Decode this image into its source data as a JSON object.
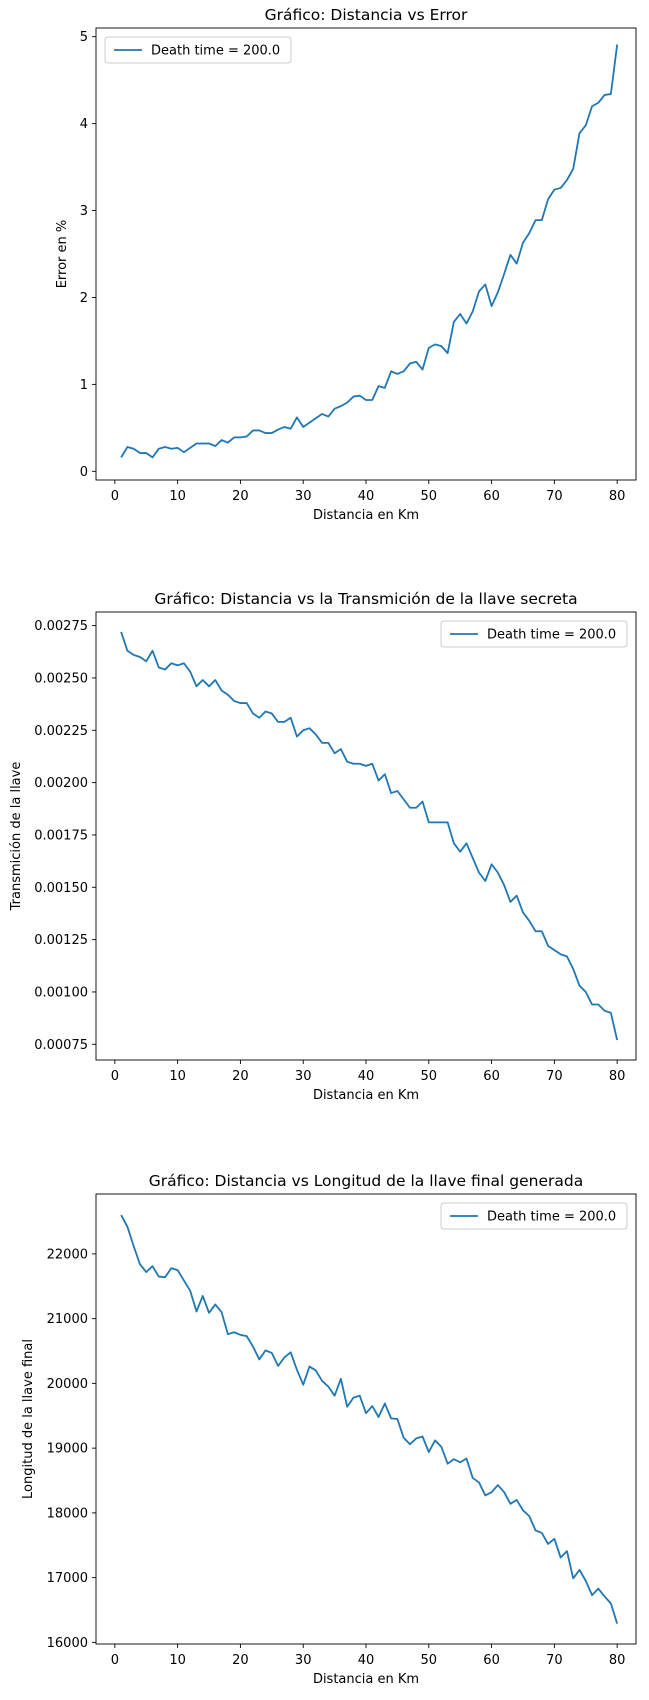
{
  "chart_data": [
    {
      "type": "line",
      "title": "Gráfico: Distancia vs Error",
      "xlabel": "Distancia en Km",
      "ylabel": "Error en %",
      "xlim": [
        -3,
        83
      ],
      "ylim": [
        -0.1,
        5.1
      ],
      "xticks": [
        0,
        10,
        20,
        30,
        40,
        50,
        60,
        70,
        80
      ],
      "yticks": [
        0,
        1,
        2,
        3,
        4,
        5
      ],
      "legend_position": "upper-left",
      "grid": false,
      "series": [
        {
          "name": "Death time = 200.0",
          "color": "#1f77b4",
          "x": [
            1,
            2,
            3,
            4,
            5,
            6,
            7,
            8,
            9,
            10,
            11,
            12,
            13,
            14,
            15,
            16,
            17,
            18,
            19,
            20,
            21,
            22,
            23,
            24,
            25,
            26,
            27,
            28,
            29,
            30,
            31,
            32,
            33,
            34,
            35,
            36,
            37,
            38,
            39,
            40,
            41,
            42,
            43,
            44,
            45,
            46,
            47,
            48,
            49,
            50,
            51,
            52,
            53,
            54,
            55,
            56,
            57,
            58,
            59,
            60,
            61,
            62,
            63,
            64,
            65,
            66,
            67,
            68,
            69,
            70,
            71,
            72,
            73,
            74,
            75,
            76,
            77,
            78,
            79,
            80
          ],
          "y": [
            0.16,
            0.28,
            0.26,
            0.21,
            0.21,
            0.16,
            0.26,
            0.28,
            0.26,
            0.27,
            0.22,
            0.27,
            0.32,
            0.32,
            0.32,
            0.29,
            0.36,
            0.33,
            0.39,
            0.39,
            0.4,
            0.47,
            0.47,
            0.44,
            0.44,
            0.48,
            0.51,
            0.49,
            0.62,
            0.51,
            0.56,
            0.61,
            0.66,
            0.63,
            0.72,
            0.75,
            0.79,
            0.86,
            0.87,
            0.82,
            0.82,
            0.98,
            0.96,
            1.15,
            1.12,
            1.15,
            1.24,
            1.26,
            1.17,
            1.42,
            1.46,
            1.44,
            1.36,
            1.72,
            1.81,
            1.7,
            1.84,
            2.07,
            2.15,
            1.9,
            2.06,
            2.27,
            2.49,
            2.39,
            2.63,
            2.74,
            2.89,
            2.89,
            3.13,
            3.24,
            3.26,
            3.35,
            3.48,
            3.89,
            3.98,
            4.2,
            4.24,
            4.33,
            4.34,
            4.91
          ]
        }
      ]
    },
    {
      "type": "line",
      "title": "Gráfico: Distancia vs la Transmición de la llave secreta",
      "xlabel": "Distancia en Km",
      "ylabel": "Transmición de la llave",
      "xlim": [
        -3,
        83
      ],
      "ylim": [
        0.000675,
        0.002815
      ],
      "xticks": [
        0,
        10,
        20,
        30,
        40,
        50,
        60,
        70,
        80
      ],
      "yticks": [
        0.00075,
        0.001,
        0.00125,
        0.0015,
        0.00175,
        0.002,
        0.00225,
        0.0025,
        0.00275
      ],
      "ytick_labels": [
        "0.00075",
        "0.00100",
        "0.00125",
        "0.00150",
        "0.00175",
        "0.00200",
        "0.00225",
        "0.00250",
        "0.00275"
      ],
      "legend_position": "upper-right",
      "grid": false,
      "series": [
        {
          "name": "Death time = 200.0",
          "color": "#1f77b4",
          "x": [
            1,
            2,
            3,
            4,
            5,
            6,
            7,
            8,
            9,
            10,
            11,
            12,
            13,
            14,
            15,
            16,
            17,
            18,
            19,
            20,
            21,
            22,
            23,
            24,
            25,
            26,
            27,
            28,
            29,
            30,
            31,
            32,
            33,
            34,
            35,
            36,
            37,
            38,
            39,
            40,
            41,
            42,
            43,
            44,
            45,
            46,
            47,
            48,
            49,
            50,
            51,
            52,
            53,
            54,
            55,
            56,
            57,
            58,
            59,
            60,
            61,
            62,
            63,
            64,
            65,
            66,
            67,
            68,
            69,
            70,
            71,
            72,
            73,
            74,
            75,
            76,
            77,
            78,
            79,
            80
          ],
          "y": [
            0.00272,
            0.00263,
            0.00261,
            0.0026,
            0.00258,
            0.00263,
            0.00255,
            0.00254,
            0.00257,
            0.00256,
            0.00257,
            0.00253,
            0.00246,
            0.00249,
            0.00246,
            0.00249,
            0.00244,
            0.00242,
            0.00239,
            0.00238,
            0.00238,
            0.00233,
            0.00231,
            0.00234,
            0.00233,
            0.00229,
            0.00229,
            0.00231,
            0.00222,
            0.00225,
            0.00226,
            0.00223,
            0.00219,
            0.00219,
            0.00214,
            0.00216,
            0.0021,
            0.00209,
            0.00209,
            0.00208,
            0.00209,
            0.00201,
            0.00204,
            0.00195,
            0.00196,
            0.00192,
            0.00188,
            0.00188,
            0.00191,
            0.00181,
            0.00181,
            0.00181,
            0.00181,
            0.00171,
            0.00167,
            0.00171,
            0.00164,
            0.00157,
            0.00153,
            0.00161,
            0.00157,
            0.00151,
            0.00143,
            0.00146,
            0.00138,
            0.00134,
            0.00129,
            0.00129,
            0.00122,
            0.0012,
            0.00118,
            0.00117,
            0.00111,
            0.00103,
            0.001,
            0.00094,
            0.00094,
            0.00091,
            0.0009,
            0.00077
          ]
        }
      ]
    },
    {
      "type": "line",
      "title": "Gráfico: Distancia vs Longitud de la llave final generada",
      "xlabel": "Distancia en Km",
      "ylabel": "Longitud de la llave final",
      "xlim": [
        -3,
        83
      ],
      "ylim": [
        15975,
        22925
      ],
      "xticks": [
        0,
        10,
        20,
        30,
        40,
        50,
        60,
        70,
        80
      ],
      "yticks": [
        16000,
        17000,
        18000,
        19000,
        20000,
        21000,
        22000
      ],
      "legend_position": "upper-right",
      "grid": false,
      "series": [
        {
          "name": "Death time = 200.0",
          "color": "#1f77b4",
          "x": [
            1,
            2,
            3,
            4,
            5,
            6,
            7,
            8,
            9,
            10,
            11,
            12,
            13,
            14,
            15,
            16,
            17,
            18,
            19,
            20,
            21,
            22,
            23,
            24,
            25,
            26,
            27,
            28,
            29,
            30,
            31,
            32,
            33,
            34,
            35,
            36,
            37,
            38,
            39,
            40,
            41,
            42,
            43,
            44,
            45,
            46,
            47,
            48,
            49,
            50,
            51,
            52,
            53,
            54,
            55,
            56,
            57,
            58,
            59,
            60,
            61,
            62,
            63,
            64,
            65,
            66,
            67,
            68,
            69,
            70,
            71,
            72,
            73,
            74,
            75,
            76,
            77,
            78,
            79,
            80
          ],
          "y": [
            22600,
            22420,
            22120,
            21840,
            21720,
            21810,
            21650,
            21640,
            21780,
            21750,
            21590,
            21430,
            21110,
            21350,
            21090,
            21220,
            21100,
            20760,
            20790,
            20750,
            20730,
            20570,
            20370,
            20510,
            20470,
            20270,
            20400,
            20480,
            20210,
            19980,
            20260,
            20200,
            20040,
            19950,
            19810,
            20070,
            19640,
            19780,
            19810,
            19540,
            19650,
            19480,
            19690,
            19460,
            19450,
            19160,
            19060,
            19150,
            19180,
            18940,
            19120,
            19020,
            18760,
            18830,
            18780,
            18840,
            18540,
            18470,
            18270,
            18320,
            18430,
            18320,
            18140,
            18200,
            18040,
            17950,
            17730,
            17690,
            17520,
            17600,
            17310,
            17410,
            16990,
            17120,
            16950,
            16730,
            16830,
            16710,
            16600,
            16290
          ]
        }
      ]
    }
  ]
}
